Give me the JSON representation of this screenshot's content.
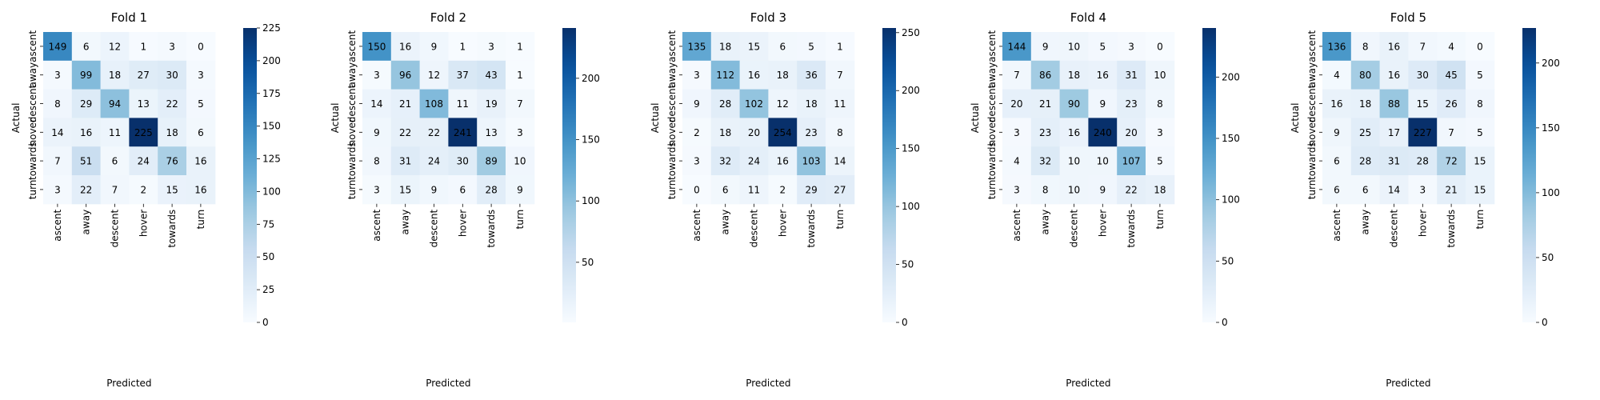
{
  "chart_data": [
    {
      "type": "heatmap",
      "title": "Fold 1",
      "xlabel": "Predicted",
      "ylabel": "Actual",
      "x_categories": [
        "ascent",
        "away",
        "descent",
        "hover",
        "towards",
        "turn"
      ],
      "y_categories": [
        "ascent",
        "away",
        "descent",
        "hover",
        "towards",
        "turn"
      ],
      "values": [
        [
          149,
          6,
          12,
          1,
          3,
          0
        ],
        [
          3,
          99,
          18,
          27,
          30,
          3
        ],
        [
          8,
          29,
          94,
          13,
          22,
          5
        ],
        [
          14,
          16,
          11,
          225,
          18,
          6
        ],
        [
          7,
          51,
          6,
          24,
          76,
          16
        ],
        [
          3,
          22,
          7,
          2,
          15,
          16
        ]
      ],
      "colorbar_range": [
        0,
        225
      ],
      "colorbar_ticks": [
        0,
        25,
        50,
        75,
        100,
        125,
        150,
        175,
        200,
        225
      ],
      "colormap": "Blues"
    },
    {
      "type": "heatmap",
      "title": "Fold 2",
      "xlabel": "Predicted",
      "ylabel": "Actual",
      "x_categories": [
        "ascent",
        "away",
        "descent",
        "hover",
        "towards",
        "turn"
      ],
      "y_categories": [
        "ascent",
        "away",
        "descent",
        "hover",
        "towards",
        "turn"
      ],
      "values": [
        [
          150,
          16,
          9,
          1,
          3,
          1
        ],
        [
          3,
          96,
          12,
          37,
          43,
          1
        ],
        [
          14,
          21,
          108,
          11,
          19,
          7
        ],
        [
          9,
          22,
          22,
          241,
          13,
          3
        ],
        [
          8,
          31,
          24,
          30,
          89,
          10
        ],
        [
          3,
          15,
          9,
          6,
          28,
          9
        ]
      ],
      "colorbar_range": [
        1,
        241
      ],
      "colorbar_ticks": [
        50,
        100,
        150,
        200
      ],
      "colormap": "Blues"
    },
    {
      "type": "heatmap",
      "title": "Fold 3",
      "xlabel": "Predicted",
      "ylabel": "Actual",
      "x_categories": [
        "ascent",
        "away",
        "descent",
        "hover",
        "towards",
        "turn"
      ],
      "y_categories": [
        "ascent",
        "away",
        "descent",
        "hover",
        "towards",
        "turn"
      ],
      "values": [
        [
          135,
          18,
          15,
          6,
          5,
          1
        ],
        [
          3,
          112,
          16,
          18,
          36,
          7
        ],
        [
          9,
          28,
          102,
          12,
          18,
          11
        ],
        [
          2,
          18,
          20,
          254,
          23,
          8
        ],
        [
          3,
          32,
          24,
          16,
          103,
          14
        ],
        [
          0,
          6,
          11,
          2,
          29,
          27
        ]
      ],
      "colorbar_range": [
        0,
        254
      ],
      "colorbar_ticks": [
        0,
        50,
        100,
        150,
        200,
        250
      ],
      "colormap": "Blues"
    },
    {
      "type": "heatmap",
      "title": "Fold 4",
      "xlabel": "Predicted",
      "ylabel": "Actual",
      "x_categories": [
        "ascent",
        "away",
        "descent",
        "hover",
        "towards",
        "turn"
      ],
      "y_categories": [
        "ascent",
        "away",
        "descent",
        "hover",
        "towards",
        "turn"
      ],
      "values": [
        [
          144,
          9,
          10,
          5,
          3,
          0
        ],
        [
          7,
          86,
          18,
          16,
          31,
          10
        ],
        [
          20,
          21,
          90,
          9,
          23,
          8
        ],
        [
          3,
          23,
          16,
          240,
          20,
          3
        ],
        [
          4,
          32,
          10,
          10,
          107,
          5
        ],
        [
          3,
          8,
          10,
          9,
          22,
          18
        ]
      ],
      "colorbar_range": [
        0,
        240
      ],
      "colorbar_ticks": [
        0,
        50,
        100,
        150,
        200
      ],
      "colormap": "Blues"
    },
    {
      "type": "heatmap",
      "title": "Fold 5",
      "xlabel": "Predicted",
      "ylabel": "Actual",
      "x_categories": [
        "ascent",
        "away",
        "descent",
        "hover",
        "towards",
        "turn"
      ],
      "y_categories": [
        "ascent",
        "away",
        "descent",
        "hover",
        "towards",
        "turn"
      ],
      "values": [
        [
          136,
          8,
          16,
          7,
          4,
          0
        ],
        [
          4,
          80,
          16,
          30,
          45,
          5
        ],
        [
          16,
          18,
          88,
          15,
          26,
          8
        ],
        [
          9,
          25,
          17,
          227,
          7,
          5
        ],
        [
          6,
          28,
          31,
          28,
          72,
          15
        ],
        [
          6,
          6,
          14,
          3,
          21,
          15
        ]
      ],
      "colorbar_range": [
        0,
        227
      ],
      "colorbar_ticks": [
        0,
        50,
        100,
        150,
        200
      ],
      "colormap": "Blues"
    }
  ]
}
